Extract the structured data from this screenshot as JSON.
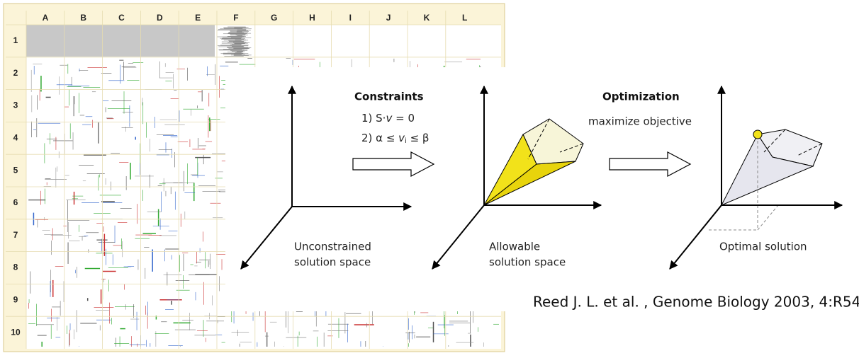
{
  "map": {
    "columns": [
      "A",
      "B",
      "C",
      "D",
      "E",
      "F",
      "G",
      "H",
      "I",
      "J",
      "K",
      "L"
    ],
    "rows": [
      "1",
      "2",
      "3",
      "4",
      "5",
      "6",
      "7",
      "8",
      "9",
      "10"
    ]
  },
  "panels": [
    {
      "label": [
        "Unconstrained",
        "solution space"
      ]
    },
    {
      "label": [
        "Allowable",
        "solution space"
      ]
    },
    {
      "label": [
        "Optimal solution"
      ]
    }
  ],
  "constraints": {
    "title": "Constraints",
    "line1": [
      "1) S·",
      "v",
      " = 0"
    ],
    "line2": [
      "2) α ≤ ",
      "v",
      "i",
      " ≤ β"
    ]
  },
  "optimization": {
    "title": "Optimization",
    "subtitle": "maximize objective"
  },
  "citation": "Reed J. L. et al. , Genome Biology 2003, 4:R54"
}
